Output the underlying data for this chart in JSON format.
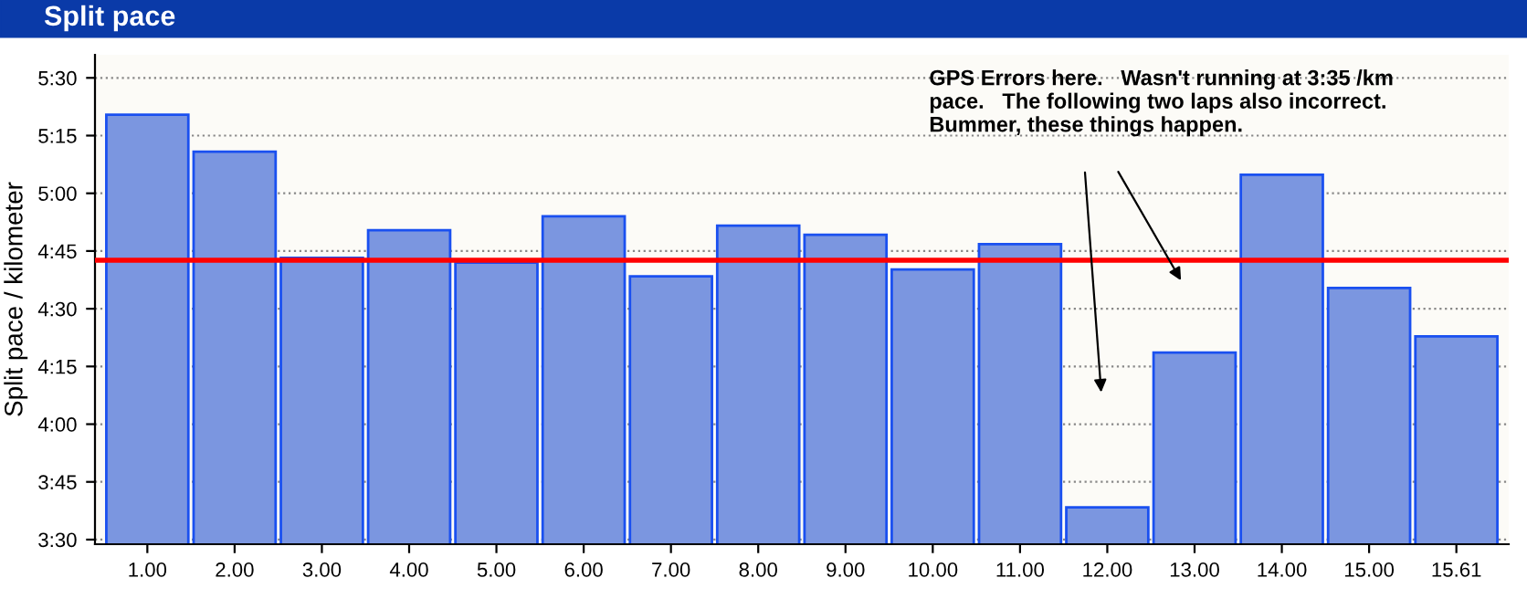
{
  "chart_data": {
    "type": "bar",
    "title": "Split pace",
    "ylabel": "Split pace / kilometer",
    "categories": [
      "1.00",
      "2.00",
      "3.00",
      "4.00",
      "5.00",
      "6.00",
      "7.00",
      "8.00",
      "9.00",
      "10.00",
      "11.00",
      "12.00",
      "13.00",
      "14.00",
      "15.00",
      "15.61"
    ],
    "values": [
      5.34,
      5.18,
      4.72,
      4.84,
      4.7,
      4.9,
      4.64,
      4.86,
      4.82,
      4.67,
      4.78,
      3.64,
      4.31,
      5.08,
      4.59,
      4.38
    ],
    "color": "#7b96e0",
    "ylim": [
      3.48,
      5.6
    ],
    "yticks": [
      {
        "value": 3.5,
        "label": "3:30"
      },
      {
        "value": 3.75,
        "label": "3:45"
      },
      {
        "value": 4.0,
        "label": "4:00"
      },
      {
        "value": 4.25,
        "label": "4:15"
      },
      {
        "value": 4.5,
        "label": "4:30"
      },
      {
        "value": 4.75,
        "label": "4:45"
      },
      {
        "value": 5.0,
        "label": "5:00"
      },
      {
        "value": 5.25,
        "label": "5:15"
      },
      {
        "value": 5.5,
        "label": "5:30"
      }
    ],
    "grid": "y",
    "ref_lines": [
      {
        "axis": "y",
        "value": 4.71,
        "label": null,
        "color": "#ff0000"
      }
    ],
    "annotations": [
      "GPS Errors here.   Wasn't running at 3:35 /km\npace.   The following two laps also incorrect.\nBummer, these things happen."
    ]
  }
}
